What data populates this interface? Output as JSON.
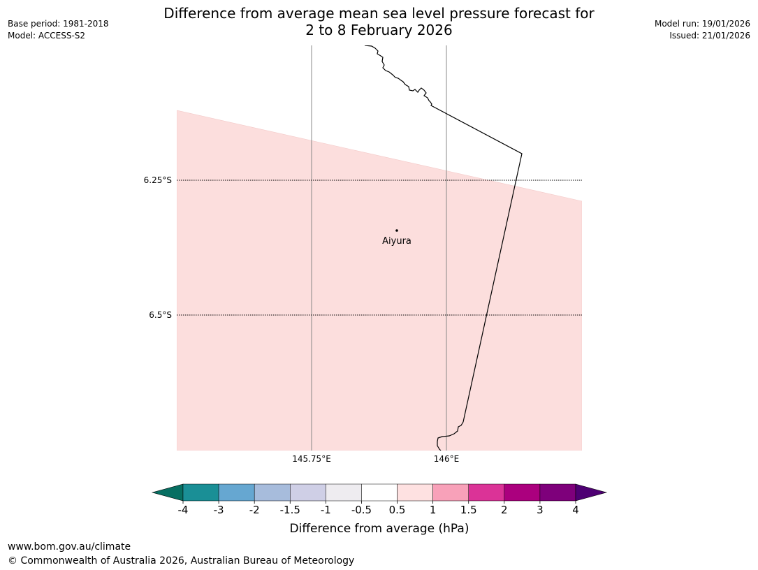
{
  "header": {
    "title_line1": "Difference from average mean sea level pressure forecast for",
    "title_line2": "2 to 8 February 2026",
    "base_period": "Base period: 1981-2018",
    "model": "Model: ACCESS-S2",
    "model_run": "Model run: 19/01/2026",
    "issued": "Issued: 21/01/2026"
  },
  "map": {
    "latitude_labels": [
      "6.25°S",
      "6.5°S"
    ],
    "longitude_labels": [
      "145.75°E",
      "146°E"
    ],
    "place_name": "Aiyura",
    "shading": {
      "value_range": "0.5 to 1",
      "color": "#fcdedd"
    }
  },
  "colorbar": {
    "title": "Difference from average (hPa)",
    "ticks": [
      "-4",
      "-3",
      "-2",
      "-1.5",
      "-1",
      "-0.5",
      "0.5",
      "1",
      "1.5",
      "2",
      "3",
      "4"
    ],
    "colors": [
      "#1a8f96",
      "#66a7d1",
      "#a7bcdc",
      "#cfcfe6",
      "#eeecf0",
      "#ffffff",
      "#fee1e1",
      "#f8a1b9",
      "#db3397",
      "#ab007e",
      "#7e007b"
    ],
    "extend_low_color": "#076f62",
    "extend_high_color": "#4e0073"
  },
  "footer": {
    "website": "www.bom.gov.au/climate",
    "copyright": "© Commonwealth of Australia 2026, Australian Bureau of Meteorology"
  }
}
